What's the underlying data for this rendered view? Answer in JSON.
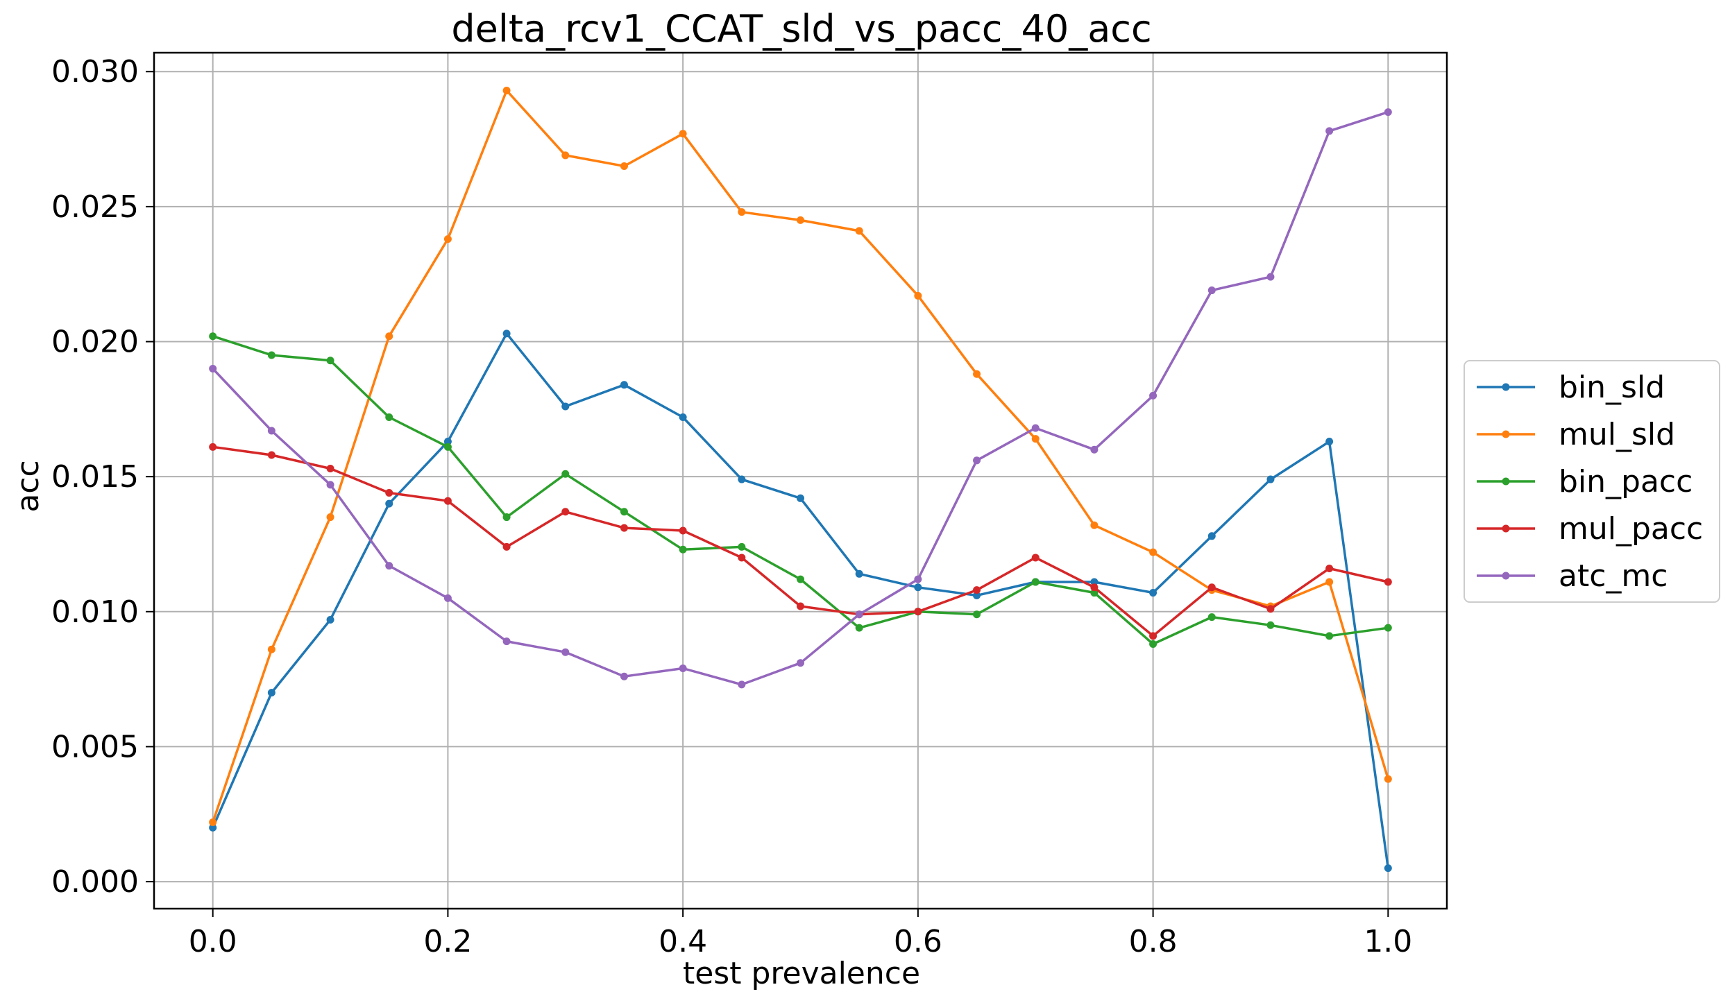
{
  "chart_data": {
    "type": "line",
    "title": "delta_rcv1_CCAT_sld_vs_pacc_40_acc",
    "xlabel": "test prevalence",
    "ylabel": "acc",
    "xlim": [
      -0.05,
      1.05
    ],
    "ylim": [
      -0.001,
      0.0307
    ],
    "xticks": [
      0.0,
      0.2,
      0.4,
      0.6,
      0.8,
      1.0
    ],
    "xtick_labels": [
      "0.0",
      "0.2",
      "0.4",
      "0.6",
      "0.8",
      "1.0"
    ],
    "yticks": [
      0.0,
      0.005,
      0.01,
      0.015,
      0.02,
      0.025,
      0.03
    ],
    "ytick_labels": [
      "0.000",
      "0.005",
      "0.010",
      "0.015",
      "0.020",
      "0.025",
      "0.030"
    ],
    "grid": true,
    "legend_position": "center-right-outside",
    "x": [
      0.0,
      0.05,
      0.1,
      0.15,
      0.2,
      0.25,
      0.3,
      0.35,
      0.4,
      0.45,
      0.5,
      0.55,
      0.6,
      0.65,
      0.7,
      0.75,
      0.8,
      0.85,
      0.9,
      0.95,
      1.0
    ],
    "series": [
      {
        "name": "bin_sld",
        "color": "#1f77b4",
        "values": [
          0.002,
          0.007,
          0.0097,
          0.014,
          0.0163,
          0.0203,
          0.0176,
          0.0184,
          0.0172,
          0.0149,
          0.0142,
          0.0114,
          0.0109,
          0.0106,
          0.0111,
          0.0111,
          0.0107,
          0.0128,
          0.0149,
          0.0163,
          0.0005
        ]
      },
      {
        "name": "mul_sld",
        "color": "#ff7f0e",
        "values": [
          0.0022,
          0.0086,
          0.0135,
          0.0202,
          0.0238,
          0.0293,
          0.0269,
          0.0265,
          0.0277,
          0.0248,
          0.0245,
          0.0241,
          0.0217,
          0.0188,
          0.0164,
          0.0132,
          0.0122,
          0.0108,
          0.0102,
          0.0111,
          0.0038
        ]
      },
      {
        "name": "bin_pacc",
        "color": "#2ca02c",
        "values": [
          0.0202,
          0.0195,
          0.0193,
          0.0172,
          0.0161,
          0.0135,
          0.0151,
          0.0137,
          0.0123,
          0.0124,
          0.0112,
          0.0094,
          0.01,
          0.0099,
          0.0111,
          0.0107,
          0.0088,
          0.0098,
          0.0095,
          0.0091,
          0.0094
        ]
      },
      {
        "name": "mul_pacc",
        "color": "#d62728",
        "values": [
          0.0161,
          0.0158,
          0.0153,
          0.0144,
          0.0141,
          0.0124,
          0.0137,
          0.0131,
          0.013,
          0.012,
          0.0102,
          0.0099,
          0.01,
          0.0108,
          0.012,
          0.0109,
          0.0091,
          0.0109,
          0.0101,
          0.0116,
          0.0111
        ]
      },
      {
        "name": "atc_mc",
        "color": "#9467bd",
        "values": [
          0.019,
          0.0167,
          0.0147,
          0.0117,
          0.0105,
          0.0089,
          0.0085,
          0.0076,
          0.0079,
          0.0073,
          0.0081,
          0.0099,
          0.0112,
          0.0156,
          0.0168,
          0.016,
          0.018,
          0.0219,
          0.0224,
          0.0278,
          0.0285
        ]
      }
    ]
  }
}
